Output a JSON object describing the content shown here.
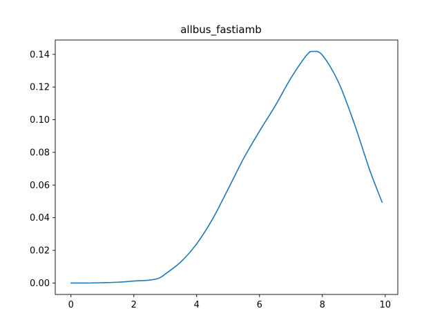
{
  "chart_data": {
    "type": "line",
    "title": "allbus_fastiamb",
    "xlabel": "",
    "ylabel": "",
    "xlim": [
      -0.5,
      10.4
    ],
    "ylim": [
      -0.007,
      0.1488
    ],
    "grid": false,
    "x_ticks": [
      "0",
      "2",
      "4",
      "6",
      "8",
      "10"
    ],
    "y_ticks": [
      "0.00",
      "0.02",
      "0.04",
      "0.06",
      "0.08",
      "0.10",
      "0.12",
      "0.14"
    ],
    "colors": {
      "line": "#1f77b4",
      "axes": "#000000",
      "background": "#ffffff"
    },
    "series": [
      {
        "x": [
          0,
          0.5,
          1.0,
          1.5,
          2.0,
          2.5,
          2.8,
          3.0,
          3.5,
          4.0,
          4.5,
          5.0,
          5.5,
          6.0,
          6.5,
          7.0,
          7.5,
          7.7,
          8.0,
          8.5,
          9.0,
          9.5,
          9.9
        ],
        "y": [
          0.0,
          0.0,
          0.0002,
          0.0005,
          0.0012,
          0.0018,
          0.003,
          0.0055,
          0.013,
          0.024,
          0.039,
          0.0575,
          0.0765,
          0.093,
          0.1085,
          0.1255,
          0.1395,
          0.1418,
          0.1395,
          0.1235,
          0.0985,
          0.0695,
          0.0495
        ]
      }
    ]
  }
}
